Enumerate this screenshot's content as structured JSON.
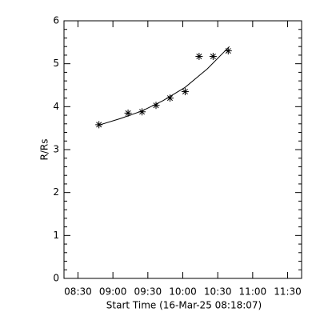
{
  "chart_data": {
    "type": "scatter",
    "xlabel": "Start Time (16-Mar-25 08:18:07)",
    "ylabel": "R/Rs",
    "x": [
      528,
      553,
      565,
      577,
      589,
      602,
      614,
      626,
      639
    ],
    "values": [
      3.58,
      3.85,
      3.88,
      4.03,
      4.2,
      4.35,
      5.17,
      5.17,
      5.3
    ],
    "fit": {
      "x": [
        528,
        546,
        565,
        583,
        602,
        621,
        640
      ],
      "values": [
        3.57,
        3.72,
        3.9,
        4.14,
        4.45,
        4.88,
        5.4
      ]
    },
    "color": "#000000",
    "xlim": [
      498,
      702
    ],
    "xticks": [
      {
        "value": 510,
        "label": "08:30"
      },
      {
        "value": 540,
        "label": "09:00"
      },
      {
        "value": 570,
        "label": "09:30"
      },
      {
        "value": 600,
        "label": "10:00"
      },
      {
        "value": 630,
        "label": "10:30"
      },
      {
        "value": 660,
        "label": "11:00"
      },
      {
        "value": 690,
        "label": "11:30"
      }
    ],
    "ylim": [
      0,
      6
    ],
    "yticks": [
      0,
      1,
      2,
      3,
      4,
      5,
      6
    ]
  }
}
